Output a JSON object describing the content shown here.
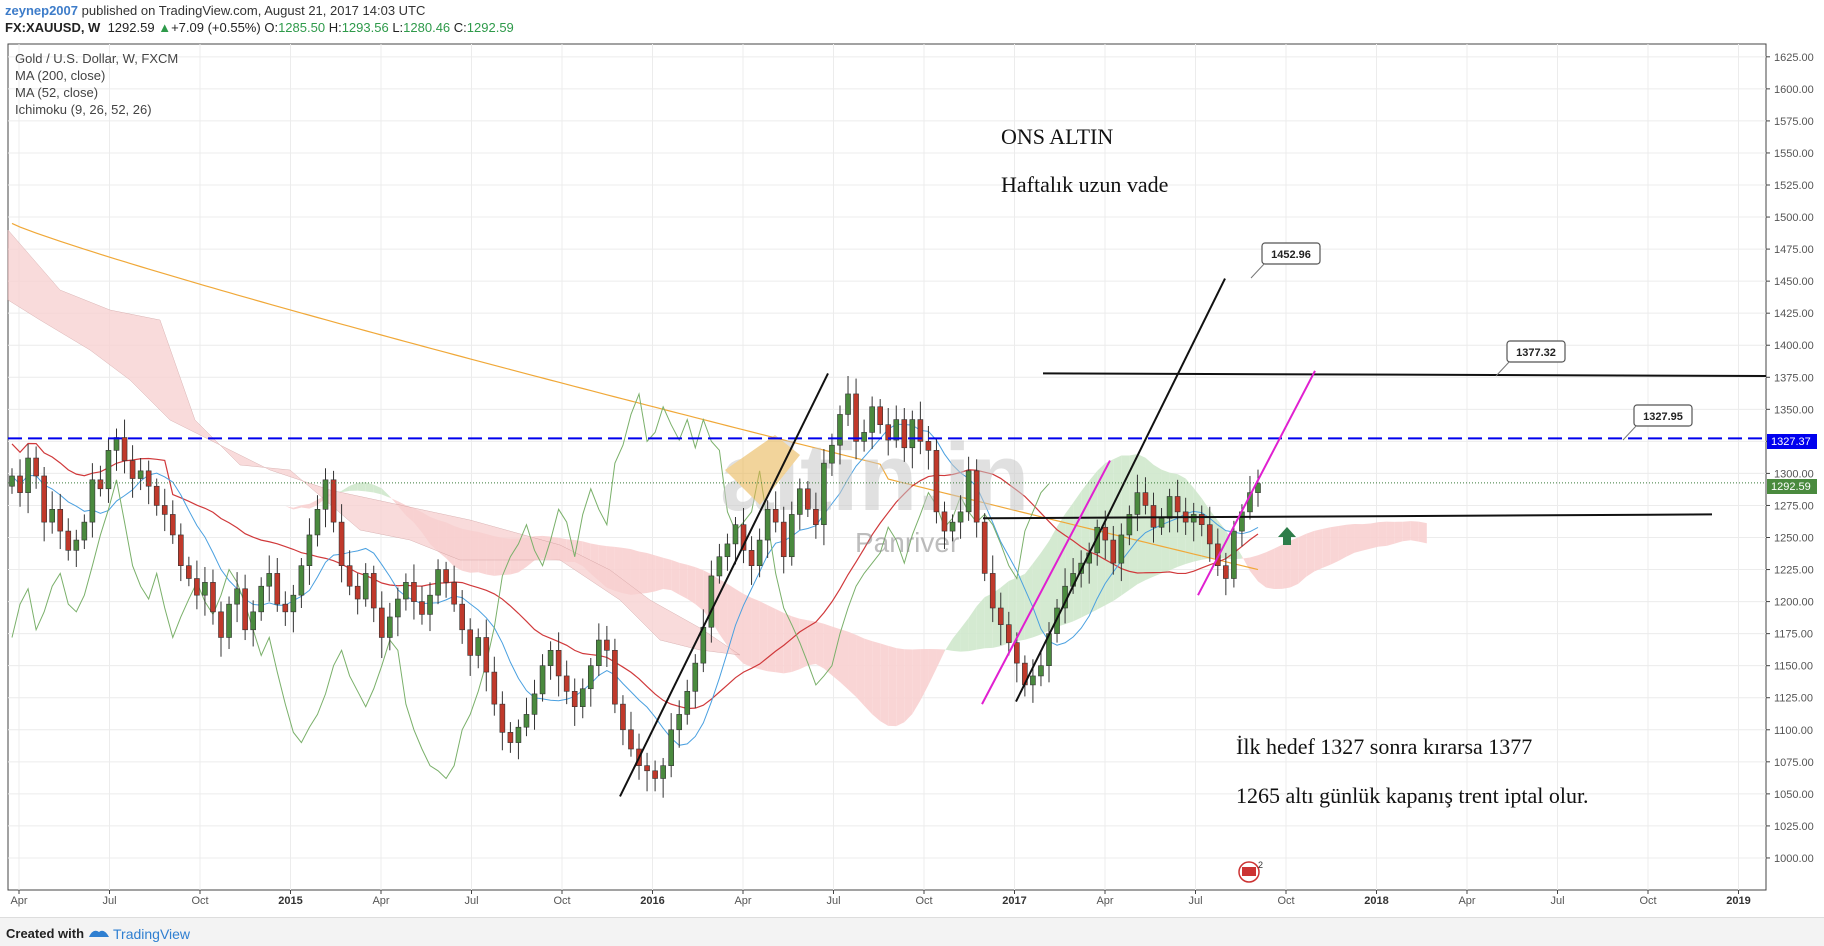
{
  "header": {
    "author": "zeynep2007",
    "published": "published on TradingView.com, August 21, 2017 14:03 UTC",
    "symbol": "FX:XAUUSD, W",
    "last": "1292.59",
    "change": "+7.09 (+0.55%)",
    "open_label": "O:",
    "open": "1285.50",
    "high_label": "H:",
    "high": "1293.56",
    "low_label": "L:",
    "low": "1280.46",
    "close_label": "C:",
    "close": "1292.59"
  },
  "legend": [
    "Gold / U.S. Dollar, W, FXCM",
    "MA (200, close)",
    "MA (52, close)",
    "Ichimoku (9, 26, 52, 26)"
  ],
  "footer": {
    "created_with": "Created with",
    "brand": "TradingView"
  },
  "colors": {
    "up": "#4a8a3e",
    "down": "#c0392b",
    "ma200": "#f0a838",
    "ma52": "#d0393b",
    "ichimoku_tenkan": "#4aa0e0",
    "ichimoku_chikou": "#7ab06a",
    "kumo_bull": "#cfe8cc",
    "kumo_bear": "#f8d0d0",
    "level": "#0000ee",
    "pink": "#e020d0"
  },
  "chart_data": {
    "type": "candlestick",
    "title": "ONS ALTIN",
    "subtitle": "Haftalık uzun vade",
    "ylim": [
      975,
      1635
    ],
    "y_ticks": [
      1000,
      1025,
      1050,
      1075,
      1100,
      1125,
      1150,
      1175,
      1200,
      1225,
      1250,
      1275,
      1300,
      1325,
      1350,
      1375,
      1400,
      1425,
      1450,
      1475,
      1500,
      1525,
      1550,
      1575,
      1600,
      1625
    ],
    "x_ticks": [
      "Apr",
      "Jul",
      "Oct",
      "2015",
      "Apr",
      "Jul",
      "Oct",
      "2016",
      "Apr",
      "Jul",
      "Oct",
      "2017",
      "Apr",
      "Jul",
      "Oct",
      "2018",
      "Apr",
      "Jul",
      "Oct",
      "2019"
    ],
    "x_tick_bold": [
      false,
      false,
      false,
      true,
      false,
      false,
      false,
      true,
      false,
      false,
      false,
      true,
      false,
      false,
      false,
      true,
      false,
      false,
      false,
      true
    ],
    "price_label": "1292.59",
    "level_label": "1327.37",
    "callouts": [
      "1452.96",
      "1377.32",
      "1327.95"
    ],
    "notes": [
      "İlk hedef 1327 sonra kırarsa 1377",
      "1265 altı günlük kapanış trent iptal olur."
    ],
    "watermark": [
      "altin.in",
      "Panriver"
    ],
    "closes": [
      1298,
      1285,
      1312,
      1298,
      1262,
      1272,
      1255,
      1240,
      1248,
      1262,
      1295,
      1288,
      1318,
      1328,
      1310,
      1296,
      1302,
      1290,
      1275,
      1268,
      1252,
      1228,
      1218,
      1205,
      1215,
      1192,
      1172,
      1198,
      1210,
      1178,
      1192,
      1212,
      1222,
      1198,
      1192,
      1205,
      1228,
      1252,
      1272,
      1295,
      1262,
      1228,
      1212,
      1202,
      1222,
      1195,
      1172,
      1188,
      1202,
      1215,
      1200,
      1190,
      1205,
      1225,
      1215,
      1198,
      1178,
      1158,
      1172,
      1145,
      1120,
      1098,
      1090,
      1102,
      1112,
      1128,
      1150,
      1162,
      1142,
      1130,
      1118,
      1132,
      1150,
      1170,
      1162,
      1120,
      1100,
      1085,
      1072,
      1068,
      1062,
      1072,
      1100,
      1112,
      1130,
      1152,
      1180,
      1220,
      1235,
      1245,
      1260,
      1240,
      1228,
      1248,
      1272,
      1262,
      1235,
      1268,
      1288,
      1272,
      1260,
      1308,
      1322,
      1346,
      1362,
      1325,
      1332,
      1352,
      1338,
      1326,
      1342,
      1320,
      1342,
      1325,
      1318,
      1270,
      1255,
      1262,
      1270,
      1302,
      1262,
      1222,
      1195,
      1182,
      1168,
      1152,
      1135,
      1142,
      1150,
      1175,
      1195,
      1212,
      1222,
      1230,
      1238,
      1258,
      1248,
      1230,
      1252,
      1268,
      1285,
      1275,
      1258,
      1265,
      1282,
      1270,
      1262,
      1268,
      1260,
      1245,
      1228,
      1218,
      1255,
      1270,
      1285,
      1292
    ]
  }
}
